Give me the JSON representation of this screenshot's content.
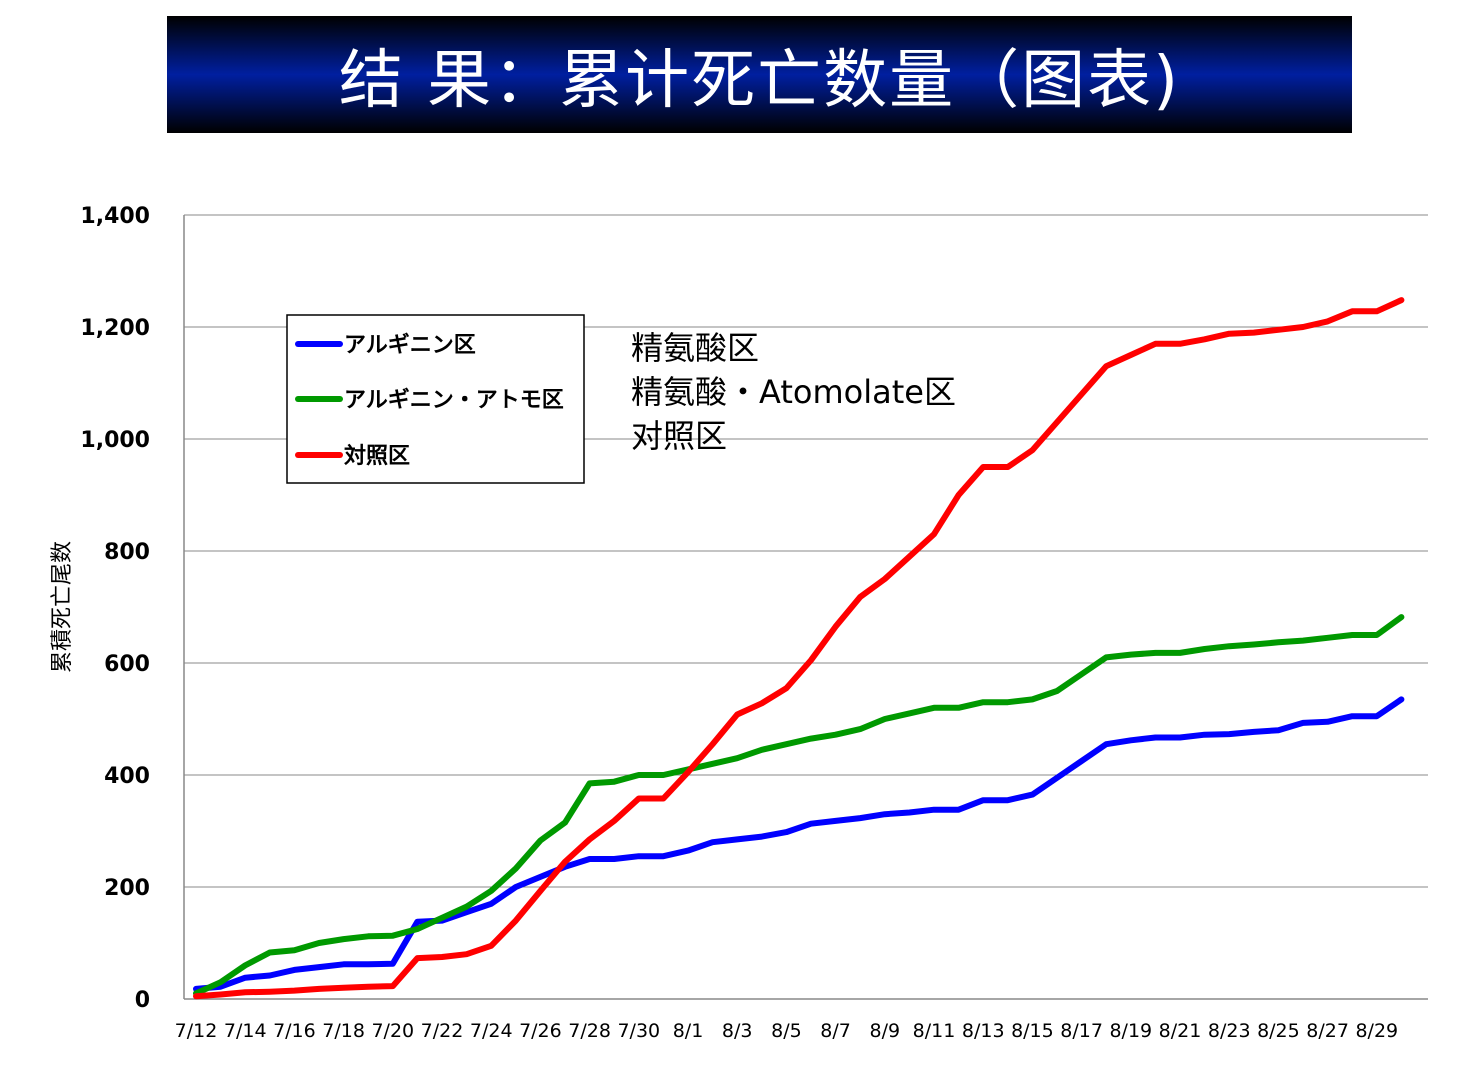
{
  "slide": {
    "title": "结 果：累计死亡数量（图表)"
  },
  "annotation_lines": [
    "精氨酸区",
    "精氨酸・Atomolate区",
    "对照区"
  ],
  "chart_data": {
    "type": "line",
    "ylabel": "累積死亡尾数",
    "xlabel": "",
    "ylim": [
      0,
      1400
    ],
    "yticks": [
      0,
      200,
      400,
      600,
      800,
      1000,
      1200,
      1400
    ],
    "ytick_labels": [
      "0",
      "200",
      "400",
      "600",
      "800",
      "1,000",
      "1,200",
      "1,400"
    ],
    "grid": true,
    "legend_position": "top-left",
    "x": [
      "7/12",
      "7/13",
      "7/14",
      "7/15",
      "7/16",
      "7/17",
      "7/18",
      "7/19",
      "7/20",
      "7/21",
      "7/22",
      "7/23",
      "7/24",
      "7/25",
      "7/26",
      "7/27",
      "7/28",
      "7/29",
      "7/30",
      "7/31",
      "8/1",
      "8/2",
      "8/3",
      "8/4",
      "8/5",
      "8/6",
      "8/7",
      "8/8",
      "8/9",
      "8/10",
      "8/11",
      "8/12",
      "8/13",
      "8/14",
      "8/15",
      "8/16",
      "8/17",
      "8/18",
      "8/19",
      "8/20",
      "8/21",
      "8/22",
      "8/23",
      "8/24",
      "8/25",
      "8/26",
      "8/27",
      "8/28",
      "8/29",
      "8/30"
    ],
    "x_tick_labels": [
      "7/12",
      "7/14",
      "7/16",
      "7/18",
      "7/20",
      "7/22",
      "7/24",
      "7/26",
      "7/28",
      "7/30",
      "8/1",
      "8/3",
      "8/5",
      "8/7",
      "8/9",
      "8/11",
      "8/13",
      "8/15",
      "8/17",
      "8/19",
      "8/21",
      "8/23",
      "8/25",
      "8/27",
      "8/29"
    ],
    "series": [
      {
        "name": "アルギニン区",
        "color": "#0000ff",
        "values": [
          18,
          22,
          38,
          42,
          52,
          57,
          62,
          62,
          63,
          138,
          140,
          155,
          170,
          200,
          218,
          236,
          250,
          250,
          255,
          255,
          265,
          280,
          285,
          290,
          298,
          313,
          318,
          323,
          330,
          333,
          338,
          338,
          355,
          355,
          365,
          395,
          425,
          455,
          462,
          467,
          467,
          472,
          473,
          477,
          480,
          493,
          495,
          505,
          505,
          535
        ]
      },
      {
        "name": "アルギニン・アトモ区",
        "color": "#009900",
        "values": [
          10,
          30,
          60,
          83,
          87,
          100,
          107,
          112,
          113,
          125,
          145,
          165,
          193,
          233,
          283,
          315,
          385,
          388,
          400,
          400,
          410,
          420,
          430,
          445,
          455,
          465,
          472,
          482,
          500,
          510,
          520,
          520,
          530,
          530,
          535,
          550,
          580,
          610,
          615,
          618,
          618,
          625,
          630,
          633,
          637,
          640,
          645,
          650,
          650,
          682
        ]
      },
      {
        "name": "対照区",
        "color": "#ff0000",
        "values": [
          5,
          8,
          12,
          13,
          15,
          18,
          20,
          22,
          23,
          73,
          75,
          80,
          95,
          140,
          193,
          245,
          285,
          318,
          358,
          358,
          405,
          455,
          508,
          528,
          555,
          605,
          665,
          718,
          750,
          790,
          830,
          900,
          950,
          950,
          980,
          1030,
          1080,
          1130,
          1150,
          1170,
          1170,
          1178,
          1188,
          1190,
          1195,
          1200,
          1210,
          1228,
          1228,
          1248
        ]
      }
    ]
  }
}
